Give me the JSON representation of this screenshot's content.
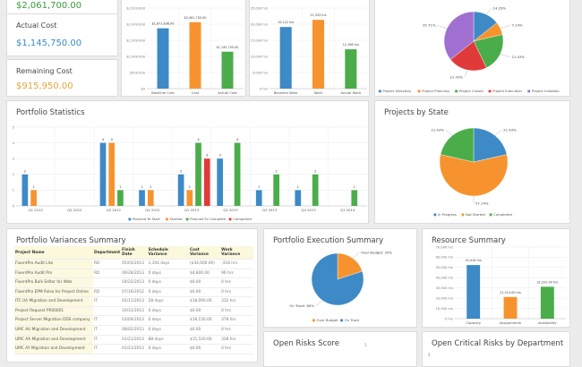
{
  "kpis": [
    {
      "label": "",
      "value": "$2,061,700.00",
      "color": "#3a9a3a"
    },
    {
      "label": "Actual Cost",
      "value": "$1,145,750.00",
      "color": "#3b8bc2"
    },
    {
      "label": "Remaining Cost",
      "value": "$915,950.00",
      "color": "#e8a33a"
    }
  ],
  "colors": {
    "blue": "#3d8ac7",
    "orange": "#f7932e",
    "green": "#4aad4a",
    "red": "#e03a3a",
    "purple": "#a070d0"
  },
  "chart_data": [
    {
      "id": "cost",
      "type": "bar",
      "categories": [
        "Baseline Cost",
        "Cost",
        "Actual Cost"
      ],
      "values": [
        1871838,
        2061700,
        1145750
      ],
      "data_labels": [
        "$1,871,838.00",
        "$2,061,700.00",
        "$1,145,750.00"
      ],
      "yticks": [
        "$0",
        "$500,000",
        "$1,000,000",
        "$1,500,000",
        "$2,000,000",
        "$2,500,000"
      ],
      "ylim": [
        0,
        2500000
      ]
    },
    {
      "id": "work",
      "type": "bar",
      "categories": [
        "Baseline Work",
        "Work",
        "Actual Work"
      ],
      "values": [
        19122,
        21333,
        12198
      ],
      "data_labels": [
        "19,122 hrs",
        "21,333 hrs",
        "12,198 hrs"
      ],
      "yticks": [
        "0 hrs",
        "5,000 hrs",
        "10,000 hrs",
        "15,000 hrs",
        "20,000 hrs",
        "25,000 hrs"
      ],
      "ylim": [
        0,
        25000
      ]
    },
    {
      "id": "phase",
      "type": "pie",
      "labels": [
        "Project Selection",
        "Project Planning",
        "Project Closed",
        "Project Execution",
        "Project Initiation"
      ],
      "values": [
        14.29,
        7.14,
        21.43,
        21.43,
        35.71
      ],
      "data_labels": [
        "14.29%",
        "7.14%",
        "21.43%",
        "21.43%",
        "35.71%"
      ],
      "legend": "bottom"
    },
    {
      "id": "stats",
      "type": "bar",
      "title": "Portfolio Statistics",
      "categories": [
        "Q1 2012",
        "Q2 2012",
        "Q3 2012",
        "Q4 2012",
        "Q1 2013",
        "Q2 2013",
        "Q3 2013",
        "Q4 2013",
        "Q1 2014"
      ],
      "yticks": [
        "0",
        "1",
        "2",
        "3",
        "4",
        "5"
      ],
      "ylim": [
        0,
        5
      ],
      "legend": "bottom",
      "series": [
        {
          "name": "Planned To Start",
          "values": [
            2,
            0,
            4,
            1,
            2,
            3,
            1,
            1,
            0
          ]
        },
        {
          "name": "Started",
          "values": [
            1,
            0,
            4,
            1,
            1,
            0,
            0,
            0,
            0
          ]
        },
        {
          "name": "Planned To Complete",
          "values": [
            0,
            0,
            1,
            0,
            4,
            4,
            2,
            2,
            1
          ]
        },
        {
          "name": "Completed",
          "values": [
            0,
            0,
            0,
            0,
            3,
            0,
            0,
            0,
            0
          ]
        }
      ]
    },
    {
      "id": "state",
      "type": "pie",
      "title": "Projects by State",
      "labels": [
        "In Progress",
        "Not Started",
        "Completed"
      ],
      "values": [
        21.43,
        57.14,
        21.43
      ],
      "data_labels": [
        "21.43%",
        "57.14%",
        "21.43%"
      ],
      "legend": "bottom"
    },
    {
      "id": "exec",
      "type": "pie",
      "title": "Portfolio Execution Summary",
      "labels": [
        "Over Budget",
        "On Track"
      ],
      "values": [
        20,
        80
      ],
      "data_labels": [
        "Over Budget: 20%",
        "On Track: 80%"
      ],
      "legend": "bottom"
    },
    {
      "id": "resource",
      "type": "bar",
      "title": "Resource Summary",
      "categories": [
        "Capacity",
        "Assignments",
        "Availability"
      ],
      "values": [
        52416,
        21214,
        31202
      ],
      "data_labels": [
        "52,416 hrs",
        "21,214.00 hrs",
        "31,202.00 hrs"
      ],
      "yticks": [
        "0 hrs",
        "10,000 hrs",
        "20,000 hrs",
        "30,000 hrs",
        "40,000 hrs",
        "50,000 hrs",
        "60,000 hrs",
        "70,000 hrs"
      ],
      "ylim": [
        0,
        70000
      ]
    }
  ],
  "variances": {
    "title": "Portfolio Variances Summary",
    "columns": [
      "Project Name",
      "Department",
      "Finish Date",
      "Schedule Variance",
      "Cost Variance",
      "Work Variance"
    ],
    "rows": [
      [
        "FluentPro Audit Lite",
        "RD",
        "05/03/2013",
        "1,356 days",
        "($34,000.00)",
        "-318 hrs"
      ],
      [
        "FluentPro Audit Pro",
        "RD",
        "06/28/2013",
        "0 days",
        "$4,800.00",
        "96 hrs"
      ],
      [
        "FluentPro Bulk Editor for Web",
        "",
        "04/22/2013",
        "0 days",
        "$0.00",
        "0 hrs"
      ],
      [
        "FluentPro EPM Pulse for Project Online",
        "RD",
        "07/16/2012",
        "0 days",
        "$0.00",
        "0 hrs"
      ],
      [
        "ITC UA Migration and Development",
        "IT",
        "02/11/2013",
        "28 days",
        "$18,090.00",
        "332 hrs"
      ],
      [
        "Project Request PR00001",
        "",
        "10/31/2013",
        "0 days",
        "$0.00",
        "0 hrs"
      ],
      [
        "Project Server Migration DDS company",
        "IT",
        "03/09/2013",
        "0 days",
        "$18,150.00",
        "378 hrs"
      ],
      [
        "UMC AU Migration and Development",
        "IT",
        "08/02/2013",
        "0 days",
        "$0.00",
        "0 hrs"
      ],
      [
        "UMC AX Migration and Development",
        "IT",
        "01/21/2013",
        "88 days",
        "$15,520.00",
        "328 hrs"
      ],
      [
        "UMC AY Migration and Development",
        "IT",
        "01/21/2013",
        "0 days",
        "$0.00",
        "0 hrs"
      ]
    ]
  },
  "risks": {
    "title": "Open Risks Score",
    "tick": "1"
  },
  "critical": {
    "title": "Open Critical Risks by Department",
    "tick": "2"
  }
}
